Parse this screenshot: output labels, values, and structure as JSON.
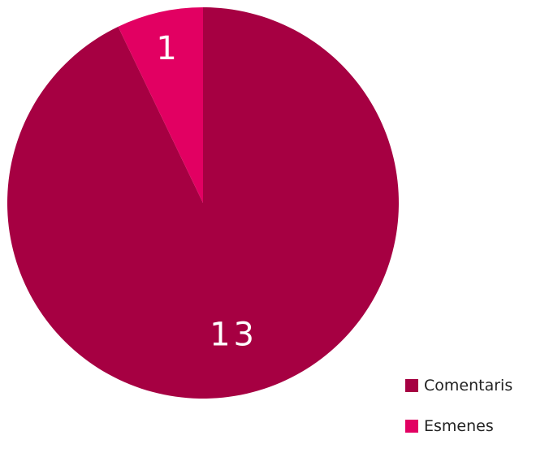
{
  "chart_data": {
    "type": "pie",
    "title": "",
    "slices": [
      {
        "name": "Comentaris",
        "value": 13,
        "label": "13",
        "color": "#A60042"
      },
      {
        "name": "Esmenes",
        "value": 1,
        "label": "1",
        "color": "#E20062"
      }
    ],
    "start_angle": "top",
    "direction": "clockwise",
    "legend_position": "bottom-right"
  }
}
